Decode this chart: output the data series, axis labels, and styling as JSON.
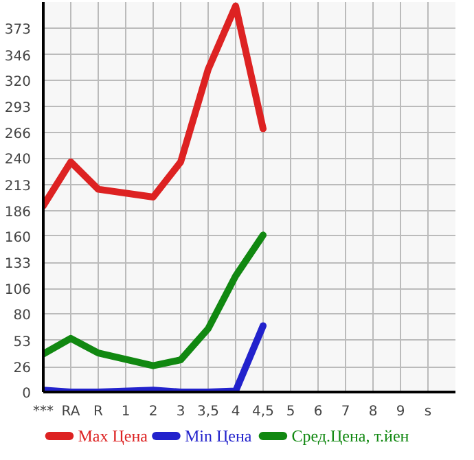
{
  "chart_data": {
    "type": "line",
    "categories": [
      "***",
      "RA",
      "R",
      "1",
      "2",
      "3",
      "3,5",
      "4",
      "4,5",
      "5",
      "6",
      "7",
      "8",
      "9",
      "s"
    ],
    "series": [
      {
        "name": "Max Цена",
        "color": "#dd2222",
        "values": [
          191,
          236,
          208,
          null,
          200,
          236,
          331,
          396,
          270,
          null,
          null,
          null,
          null,
          null,
          null
        ]
      },
      {
        "name": "Min Цена",
        "color": "#2222cc",
        "values": [
          2,
          0,
          0,
          null,
          2,
          0,
          0,
          1,
          68,
          null,
          null,
          null,
          null,
          null,
          null
        ]
      },
      {
        "name": "Сред.Цена, т.йен",
        "color": "#118811",
        "values": [
          39,
          55,
          40,
          null,
          27,
          33,
          65,
          119,
          161,
          null,
          null,
          null,
          null,
          null,
          null
        ]
      }
    ],
    "ylim": [
      0,
      400
    ],
    "yticks": [
      0,
      26,
      53,
      80,
      106,
      133,
      160,
      186,
      213,
      240,
      266,
      293,
      320,
      346,
      373
    ],
    "grid": true,
    "legend": "bottom",
    "line_style": "solid"
  }
}
